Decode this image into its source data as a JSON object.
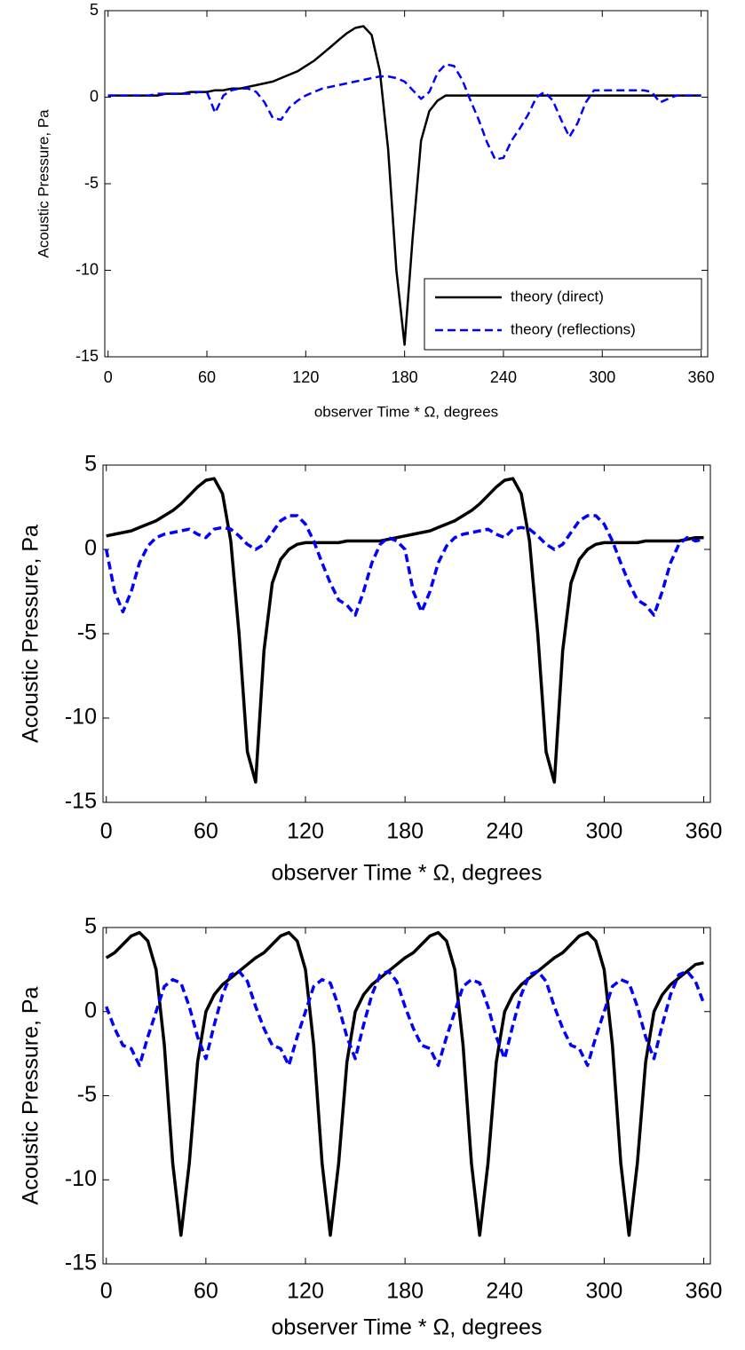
{
  "chart_data": [
    {
      "type": "line",
      "ylabel": "Acoustic Pressure, Pa",
      "xlabel": "observer Time * Ω, degrees",
      "xlim": [
        -2,
        364
      ],
      "ylim": [
        -15,
        5
      ],
      "xticks": [
        0,
        60,
        120,
        180,
        240,
        300,
        360
      ],
      "yticks": [
        -15,
        -10,
        -5,
        0,
        5
      ],
      "grid": false,
      "legend": "lower right",
      "x": [
        0,
        5,
        10,
        15,
        20,
        25,
        30,
        35,
        40,
        45,
        50,
        55,
        60,
        65,
        70,
        75,
        80,
        85,
        90,
        95,
        100,
        105,
        110,
        115,
        120,
        125,
        130,
        135,
        140,
        145,
        150,
        155,
        160,
        165,
        170,
        175,
        180,
        185,
        190,
        195,
        200,
        205,
        210,
        215,
        220,
        225,
        230,
        235,
        240,
        245,
        250,
        255,
        260,
        265,
        270,
        275,
        280,
        285,
        290,
        295,
        300,
        305,
        310,
        315,
        320,
        325,
        330,
        335,
        340,
        345,
        350,
        355,
        360
      ],
      "series": [
        {
          "name": "theory (direct)",
          "color": "#000000",
          "style": "solid",
          "values": [
            0.1,
            0.1,
            0.1,
            0.1,
            0.1,
            0.1,
            0.1,
            0.2,
            0.2,
            0.2,
            0.3,
            0.3,
            0.3,
            0.4,
            0.4,
            0.5,
            0.5,
            0.6,
            0.7,
            0.8,
            0.9,
            1.1,
            1.3,
            1.5,
            1.8,
            2.1,
            2.5,
            2.9,
            3.3,
            3.7,
            4.0,
            4.1,
            3.6,
            1.5,
            -3,
            -10,
            -14.3,
            -8,
            -2.5,
            -0.8,
            -0.2,
            0.1,
            0.1,
            0.1,
            0.1,
            0.1,
            0.1,
            0.1,
            0.1,
            0.1,
            0.1,
            0.1,
            0.1,
            0.1,
            0.1,
            0.1,
            0.1,
            0.1,
            0.1,
            0.1,
            0.1,
            0.1,
            0.1,
            0.1,
            0.1,
            0.1,
            0.1,
            0.1,
            0.1,
            0.1,
            0.1,
            0.1,
            0.1
          ]
        },
        {
          "name": "theory (reflections)",
          "color": "#0000ff",
          "style": "dashed",
          "values": [
            0.1,
            0.1,
            0.1,
            0.1,
            0.1,
            0.1,
            0.2,
            0.2,
            0.2,
            0.2,
            0.2,
            0.3,
            0.3,
            -0.9,
            0.1,
            0.4,
            0.5,
            0.5,
            0.3,
            -0.3,
            -1.2,
            -1.3,
            -0.6,
            -0.2,
            0.1,
            0.3,
            0.5,
            0.6,
            0.7,
            0.8,
            0.9,
            1.0,
            1.1,
            1.2,
            1.2,
            1.1,
            0.9,
            0.4,
            -0.1,
            0.3,
            1.4,
            1.9,
            1.8,
            1.0,
            -0.2,
            -1.3,
            -2.6,
            -3.6,
            -3.5,
            -2.5,
            -1.8,
            -1.0,
            0.0,
            0.3,
            -0.2,
            -1.3,
            -2.3,
            -1.5,
            -0.3,
            0.4,
            0.4,
            0.4,
            0.4,
            0.4,
            0.4,
            0.4,
            0.3,
            -0.3,
            -0.1,
            0.1,
            0.1,
            0.1,
            0.1
          ]
        }
      ]
    },
    {
      "type": "line",
      "ylabel": "Acoustic Pressure, Pa",
      "xlabel": "observer Time * Ω, degrees",
      "xlim": [
        -2,
        364
      ],
      "ylim": [
        -15,
        5
      ],
      "xticks": [
        0,
        60,
        120,
        180,
        240,
        300,
        360
      ],
      "yticks": [
        -15,
        -10,
        -5,
        0,
        5
      ],
      "grid": false,
      "x": [
        0,
        5,
        10,
        15,
        20,
        25,
        30,
        35,
        40,
        45,
        50,
        55,
        60,
        65,
        70,
        75,
        80,
        85,
        90,
        95,
        100,
        105,
        110,
        115,
        120,
        125,
        130,
        135,
        140,
        145,
        150,
        155,
        160,
        165,
        170,
        175,
        180,
        185,
        190,
        195,
        200,
        205,
        210,
        215,
        220,
        225,
        230,
        235,
        240,
        245,
        250,
        255,
        260,
        265,
        270,
        275,
        280,
        285,
        290,
        295,
        300,
        305,
        310,
        315,
        320,
        325,
        330,
        335,
        340,
        345,
        350,
        355,
        360
      ],
      "series": [
        {
          "color": "#000000",
          "style": "solid",
          "values": [
            0.8,
            0.9,
            1.0,
            1.1,
            1.3,
            1.5,
            1.7,
            2.0,
            2.3,
            2.7,
            3.2,
            3.7,
            4.1,
            4.2,
            3.3,
            0.5,
            -5,
            -12,
            -13.8,
            -6,
            -2,
            -0.6,
            0.0,
            0.3,
            0.4,
            0.4,
            0.4,
            0.4,
            0.4,
            0.5,
            0.5,
            0.5,
            0.5,
            0.5,
            0.6,
            0.7,
            0.8,
            0.9,
            1.0,
            1.1,
            1.3,
            1.5,
            1.7,
            2.0,
            2.3,
            2.7,
            3.2,
            3.7,
            4.1,
            4.2,
            3.3,
            0.5,
            -5,
            -12,
            -13.8,
            -6,
            -2,
            -0.6,
            0.0,
            0.3,
            0.4,
            0.4,
            0.4,
            0.4,
            0.4,
            0.5,
            0.5,
            0.5,
            0.5,
            0.5,
            0.6,
            0.7,
            0.7
          ]
        },
        {
          "color": "#0000ff",
          "style": "dashed",
          "values": [
            0.0,
            -2.5,
            -3.7,
            -2.5,
            -0.8,
            0.2,
            0.7,
            0.9,
            1.0,
            1.1,
            1.2,
            0.9,
            0.7,
            1.2,
            1.3,
            1.2,
            0.8,
            0.3,
            0.0,
            0.3,
            1.0,
            1.7,
            2.0,
            2.0,
            1.5,
            0.5,
            -0.8,
            -2.0,
            -3.0,
            -3.3,
            -3.9,
            -2.5,
            -0.8,
            0.3,
            0.7,
            0.5,
            0.0,
            -2.5,
            -3.7,
            -2.5,
            -0.8,
            0.2,
            0.7,
            0.9,
            1.0,
            1.1,
            1.2,
            0.9,
            0.7,
            1.2,
            1.3,
            1.2,
            0.8,
            0.3,
            0.0,
            0.3,
            1.0,
            1.7,
            2.0,
            2.0,
            1.5,
            0.5,
            -0.8,
            -2.0,
            -3.0,
            -3.3,
            -3.9,
            -2.5,
            -0.8,
            0.3,
            0.7,
            0.5,
            0.6
          ]
        }
      ]
    },
    {
      "type": "line",
      "ylabel": "Acoustic Pressure, Pa",
      "xlabel": "observer Time * Ω, degrees",
      "xlim": [
        -2,
        364
      ],
      "ylim": [
        -15,
        5
      ],
      "xticks": [
        0,
        60,
        120,
        180,
        240,
        300,
        360
      ],
      "yticks": [
        -15,
        -10,
        -5,
        0,
        5
      ],
      "grid": false,
      "x": [
        0,
        5,
        10,
        15,
        20,
        25,
        30,
        35,
        40,
        45,
        50,
        55,
        60,
        65,
        70,
        75,
        80,
        85,
        90,
        95,
        100,
        105,
        110,
        115,
        120,
        125,
        130,
        135,
        140,
        145,
        150,
        155,
        160,
        165,
        170,
        175,
        180,
        185,
        190,
        195,
        200,
        205,
        210,
        215,
        220,
        225,
        230,
        235,
        240,
        245,
        250,
        255,
        260,
        265,
        270,
        275,
        280,
        285,
        290,
        295,
        300,
        305,
        310,
        315,
        320,
        325,
        330,
        335,
        340,
        345,
        350,
        355,
        360
      ],
      "series": [
        {
          "color": "#000000",
          "style": "solid",
          "values": [
            3.2,
            3.5,
            4.0,
            4.5,
            4.7,
            4.2,
            2.5,
            -2,
            -9,
            -13.3,
            -9,
            -3,
            0.0,
            1.0,
            1.6,
            2.0,
            2.4,
            2.8,
            3.2,
            3.5,
            4.0,
            4.5,
            4.7,
            4.2,
            2.5,
            -2,
            -9,
            -13.3,
            -9,
            -3,
            0.0,
            1.0,
            1.6,
            2.0,
            2.4,
            2.8,
            3.2,
            3.5,
            4.0,
            4.5,
            4.7,
            4.2,
            2.5,
            -2,
            -9,
            -13.3,
            -9,
            -3,
            0.0,
            1.0,
            1.6,
            2.0,
            2.4,
            2.8,
            3.2,
            3.5,
            4.0,
            4.5,
            4.7,
            4.2,
            2.5,
            -2,
            -9,
            -13.3,
            -9,
            -3,
            0.0,
            1.0,
            1.6,
            2.0,
            2.4,
            2.8,
            2.9
          ]
        },
        {
          "color": "#0000ff",
          "style": "dashed",
          "values": [
            0.3,
            -1.0,
            -2.0,
            -2.2,
            -3.2,
            -1.5,
            0.0,
            1.5,
            1.9,
            1.7,
            0.3,
            -1.5,
            -2.8,
            -0.8,
            1.0,
            2.2,
            2.4,
            1.8,
            0.3,
            -1.0,
            -2.0,
            -2.2,
            -3.2,
            -1.5,
            0.0,
            1.5,
            1.9,
            1.7,
            0.3,
            -1.5,
            -2.8,
            -0.8,
            1.0,
            2.2,
            2.4,
            1.8,
            0.3,
            -1.0,
            -2.0,
            -2.2,
            -3.2,
            -1.5,
            0.0,
            1.5,
            1.9,
            1.7,
            0.3,
            -1.5,
            -2.8,
            -0.8,
            1.0,
            2.2,
            2.4,
            1.8,
            0.3,
            -1.0,
            -2.0,
            -2.2,
            -3.2,
            -1.5,
            0.0,
            1.5,
            1.9,
            1.7,
            0.3,
            -1.5,
            -2.8,
            -0.8,
            1.0,
            2.2,
            2.4,
            1.8,
            0.5
          ]
        }
      ]
    }
  ]
}
